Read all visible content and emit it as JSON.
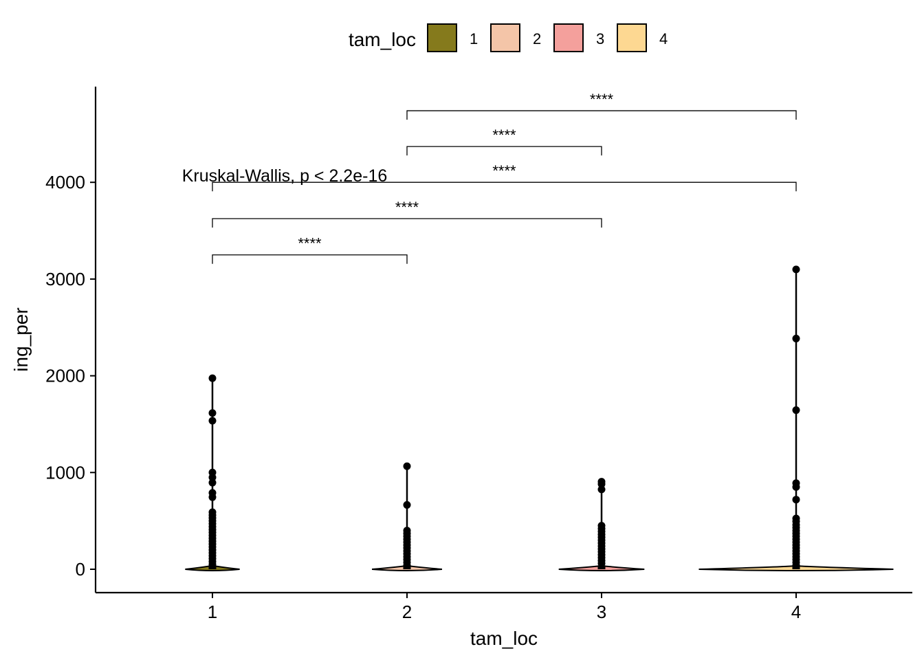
{
  "chart_data": {
    "type": "violin",
    "xlabel": "tam_loc",
    "ylabel": "ing_per",
    "categories": [
      "1",
      "2",
      "3",
      "4"
    ],
    "ylim": [
      -230,
      4900
    ],
    "yticks": [
      0,
      1000,
      2000,
      3000,
      4000
    ],
    "legend": {
      "title": "tam_loc",
      "placement": "top",
      "entries": [
        {
          "label": "1",
          "color": "#857A1C"
        },
        {
          "label": "2",
          "color": "#F4C5A8"
        },
        {
          "label": "3",
          "color": "#F4A09C"
        },
        {
          "label": "4",
          "color": "#FDD892"
        }
      ]
    },
    "groups": [
      {
        "category": "1",
        "violin_halfwidth": 0.14,
        "max": 1975,
        "outliers": [
          1975,
          1615,
          1535,
          1000,
          950,
          895,
          790,
          745,
          590,
          560,
          530,
          500,
          470,
          440,
          410,
          380,
          350,
          320,
          290,
          260,
          230,
          200,
          170,
          140,
          110,
          80,
          50
        ]
      },
      {
        "category": "2",
        "violin_halfwidth": 0.18,
        "max": 1065,
        "outliers": [
          1065,
          665,
          400,
          370,
          340,
          310,
          280,
          250,
          220,
          190,
          160,
          130,
          100,
          70,
          40
        ]
      },
      {
        "category": "3",
        "violin_halfwidth": 0.22,
        "max": 905,
        "outliers": [
          905,
          880,
          825,
          450,
          420,
          390,
          360,
          330,
          300,
          270,
          240,
          210,
          180,
          150,
          120,
          90,
          60
        ]
      },
      {
        "category": "4",
        "violin_halfwidth": 0.5,
        "max": 3100,
        "outliers": [
          3100,
          2385,
          1645,
          890,
          850,
          720,
          525,
          495,
          460,
          430,
          400,
          370,
          340,
          310,
          280,
          250,
          220,
          190,
          160,
          130,
          100,
          70,
          40
        ]
      }
    ],
    "comparisons": [
      {
        "from": "1",
        "to": "2",
        "y": 3250,
        "label": "****"
      },
      {
        "from": "1",
        "to": "3",
        "y": 3625,
        "label": "****"
      },
      {
        "from": "1",
        "to": "4",
        "y": 4000,
        "label": "****"
      },
      {
        "from": "2",
        "to": "3",
        "y": 4370,
        "label": "****"
      },
      {
        "from": "2",
        "to": "4",
        "y": 4740,
        "label": "****"
      }
    ],
    "annotation": {
      "text": "Kruskal-Wallis, p < 2.2e-16",
      "x": "1",
      "y": 4000
    }
  }
}
